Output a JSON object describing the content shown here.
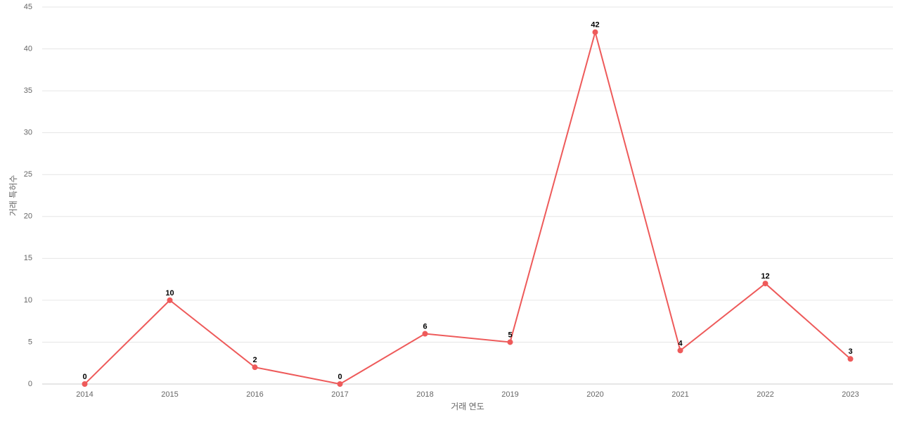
{
  "chart_data": {
    "type": "line",
    "x_label": "거래 연도",
    "y_label": "거래 특허수",
    "categories": [
      "2014",
      "2015",
      "2016",
      "2017",
      "2018",
      "2019",
      "2020",
      "2021",
      "2022",
      "2023"
    ],
    "values": [
      0,
      10,
      2,
      0,
      6,
      5,
      42,
      4,
      12,
      3
    ],
    "color": "#ee5a5a",
    "ylim": [
      0,
      45
    ],
    "yticks": [
      0,
      5,
      10,
      15,
      20,
      25,
      30,
      35,
      40,
      45
    ],
    "grid": true
  }
}
